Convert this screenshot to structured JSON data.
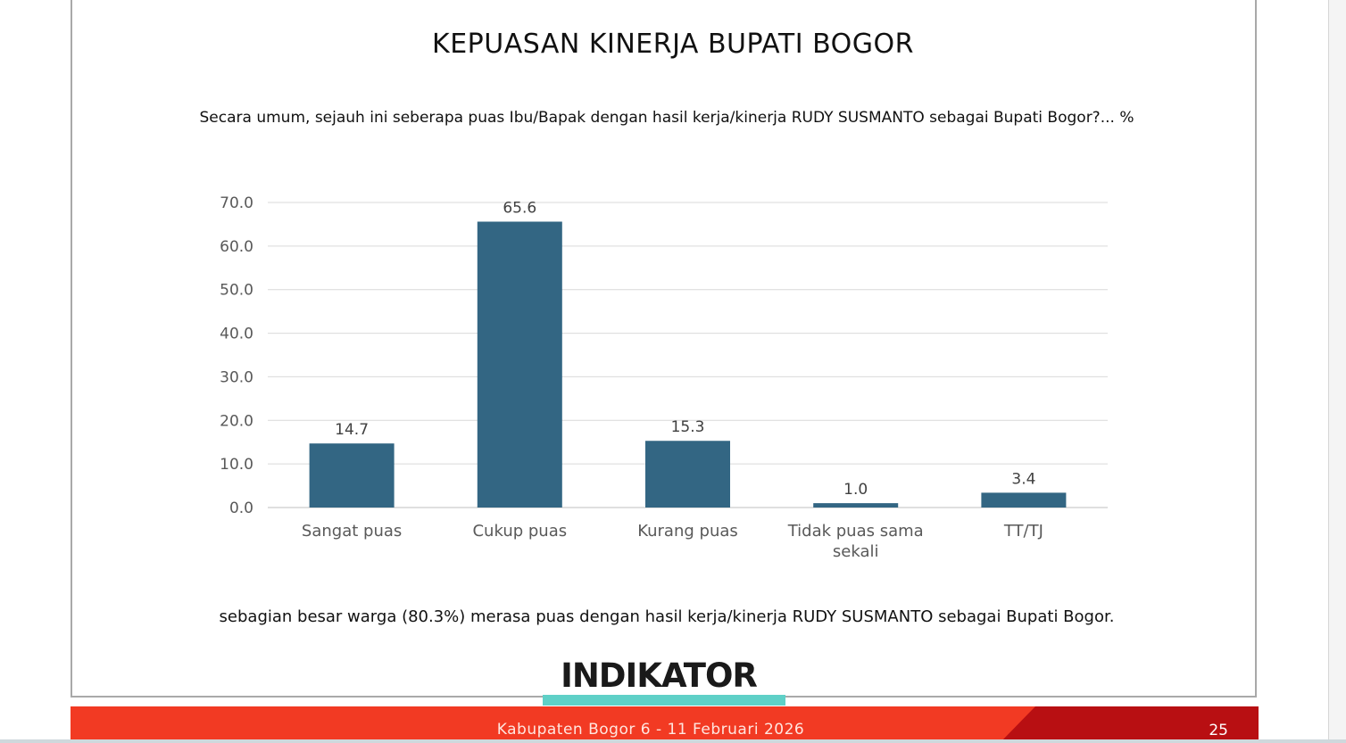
{
  "slide": {
    "title": "KEPUASAN KINERJA BUPATI BOGOR",
    "question": "Secara umum, sejauh ini seberapa puas Ibu/Bapak dengan hasil kerja/kinerja RUDY SUSMANTO sebagai Bupati Bogor?... %",
    "note": "sebagian besar warga (80.3%) merasa puas dengan hasil kerja/kinerja RUDY SUSMANTO sebagai Bupati Bogor.",
    "logo_text": "INDIKATOR",
    "footer_text": "Kabupaten Bogor 6 - 11 Februari 2026",
    "page_number": "25"
  },
  "colors": {
    "bar": "#336683",
    "gridline": "#d9d9d9",
    "footer_red": "#f23a23",
    "footer_dark_red": "#b80f12",
    "logo_accent": "#5fd0c7"
  },
  "chart_data": {
    "type": "bar",
    "title": "",
    "xlabel": "",
    "ylabel": "",
    "categories": [
      "Sangat puas",
      "Cukup puas",
      "Kurang puas",
      "Tidak puas sama sekali",
      "TT/TJ"
    ],
    "category_lines": [
      [
        "Sangat puas"
      ],
      [
        "Cukup puas"
      ],
      [
        "Kurang puas"
      ],
      [
        "Tidak puas sama",
        "sekali"
      ],
      [
        "TT/TJ"
      ]
    ],
    "values": [
      14.7,
      65.6,
      15.3,
      1.0,
      3.4
    ],
    "data_labels": [
      "14.7",
      "65.6",
      "15.3",
      "1.0",
      "3.4"
    ],
    "ylim": [
      0,
      70
    ],
    "yticks": [
      0,
      10,
      20,
      30,
      40,
      50,
      60,
      70
    ],
    "ytick_labels": [
      "0.0",
      "10.0",
      "20.0",
      "30.0",
      "40.0",
      "50.0",
      "60.0",
      "70.0"
    ],
    "grid": true,
    "legend": "none"
  }
}
